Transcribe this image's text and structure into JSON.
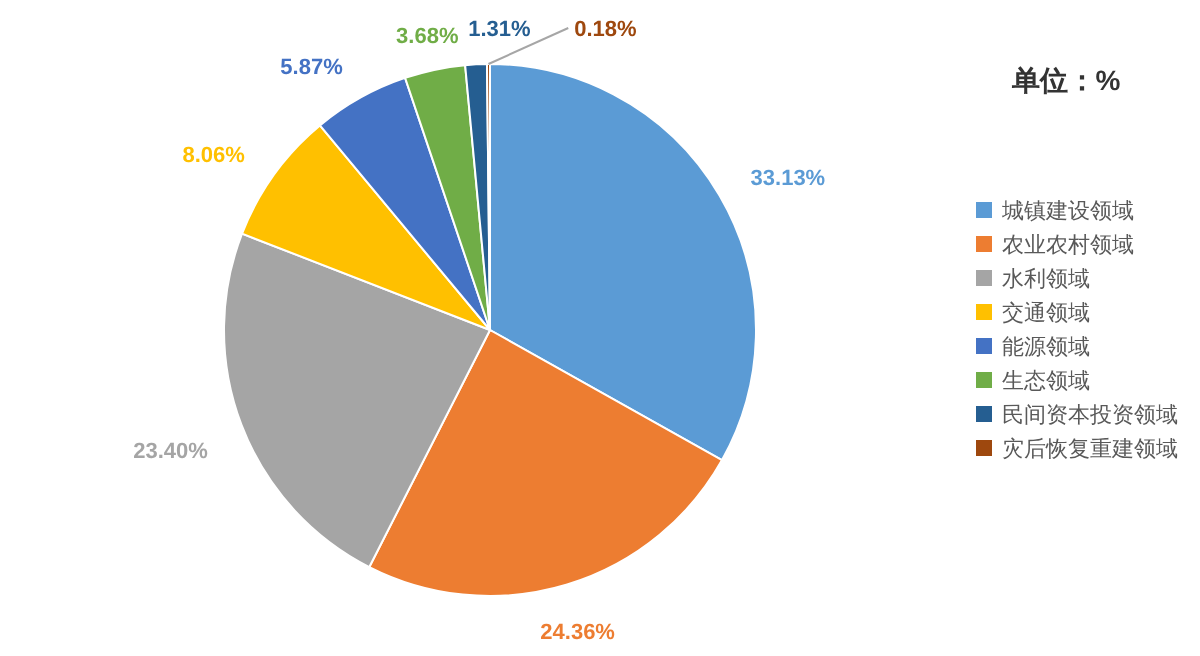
{
  "chart_data": {
    "type": "pie",
    "title": "单位：%",
    "categories": [
      "城镇建设领域",
      "农业农村领域",
      "水利领域",
      "交通领域",
      "能源领域",
      "生态领域",
      "民间资本投资领域",
      "灾后恢复重建领域"
    ],
    "values": [
      33.13,
      24.36,
      23.4,
      8.06,
      5.87,
      3.68,
      1.31,
      0.18
    ],
    "colors": [
      "#5b9bd5",
      "#ed7d31",
      "#a5a5a5",
      "#ffc000",
      "#4472c4",
      "#70ad47",
      "#255e91",
      "#9e480e"
    ],
    "value_labels": [
      "33.13%",
      "24.36%",
      "23.40%",
      "8.06%",
      "5.87%",
      "3.68%",
      "1.31%",
      "0.18%"
    ],
    "legend": "right"
  }
}
